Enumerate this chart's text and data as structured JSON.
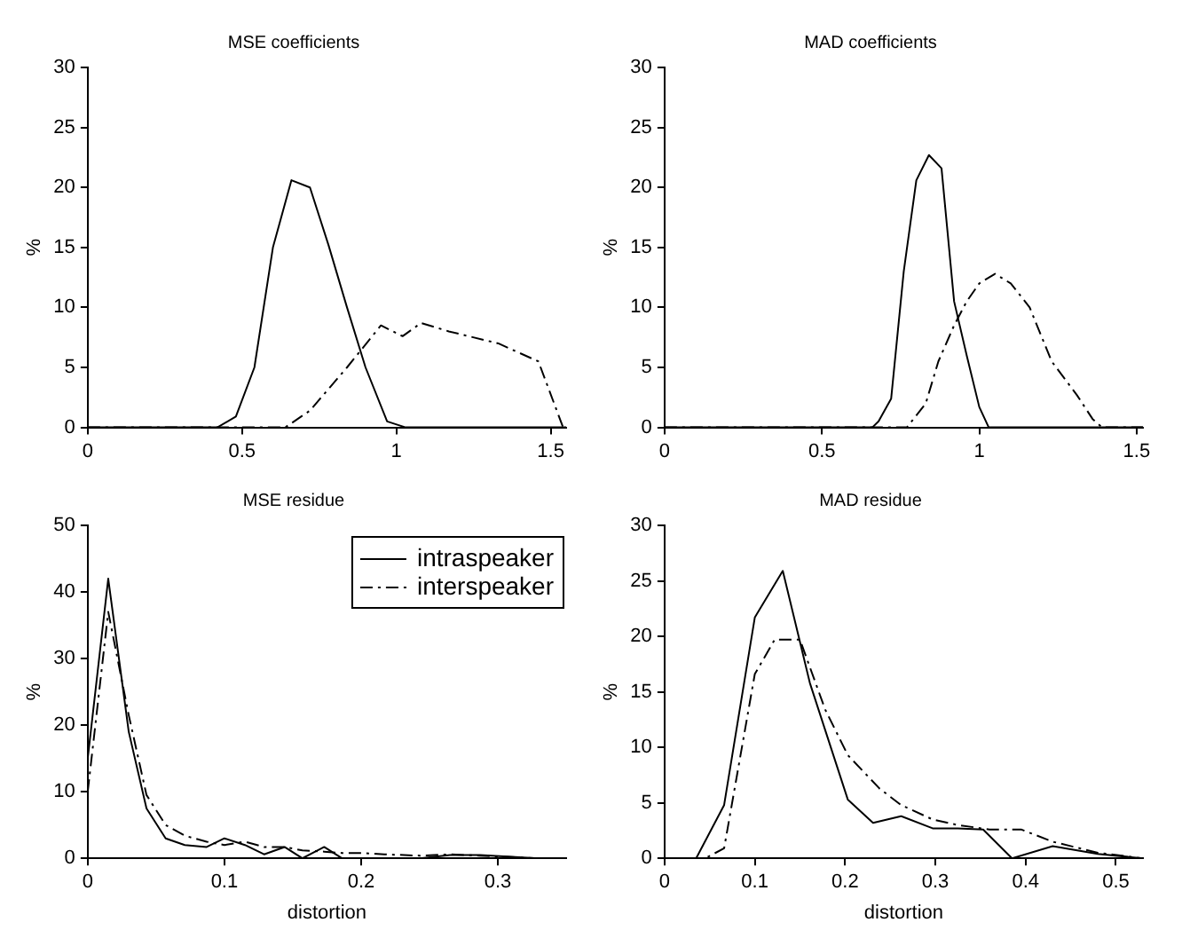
{
  "chart_data": [
    {
      "type": "line",
      "title": "MSE coefficients",
      "ylabel": "%",
      "xlim": [
        0,
        1.55
      ],
      "xticks": [
        0,
        0.5,
        1,
        1.5
      ],
      "ylim": [
        0,
        30
      ],
      "yticks": [
        0,
        5,
        10,
        15,
        20,
        25,
        30
      ],
      "grid": false,
      "legend": false,
      "marker": "none",
      "series": [
        {
          "color": "#000000",
          "line_style": "solid",
          "x": [
            0,
            0.42,
            0.48,
            0.54,
            0.6,
            0.66,
            0.72,
            0.78,
            0.84,
            0.9,
            0.97,
            1.03,
            1.55
          ],
          "values": [
            0,
            0,
            0.9,
            5,
            15,
            20.6,
            20,
            15.2,
            10,
            5,
            0.5,
            0,
            0
          ]
        },
        {
          "color": "#000000",
          "line_style": "dashed",
          "x": [
            0,
            0.64,
            0.72,
            0.84,
            0.95,
            1.02,
            1.08,
            1.17,
            1.33,
            1.46,
            1.54
          ],
          "values": [
            0,
            0,
            1.4,
            5,
            8.5,
            7.6,
            8.7,
            8,
            7,
            5.5,
            0
          ]
        }
      ]
    },
    {
      "type": "line",
      "title": "MAD coefficients",
      "ylabel": "%",
      "xlim": [
        0,
        1.52
      ],
      "xticks": [
        0,
        0.5,
        1,
        1.5
      ],
      "ylim": [
        0,
        30
      ],
      "yticks": [
        0,
        5,
        10,
        15,
        20,
        25,
        30
      ],
      "grid": false,
      "legend": false,
      "marker": "none",
      "series": [
        {
          "color": "#000000",
          "line_style": "solid",
          "x": [
            0,
            0.66,
            0.68,
            0.72,
            0.76,
            0.8,
            0.84,
            0.88,
            0.92,
            0.96,
            1,
            1.03,
            1.52
          ],
          "values": [
            0,
            0,
            0.5,
            2.4,
            13,
            20.6,
            22.7,
            21.6,
            10.5,
            6,
            1.7,
            0,
            0
          ]
        },
        {
          "color": "#000000",
          "line_style": "dashed",
          "x": [
            0,
            0.77,
            0.83,
            0.87,
            0.92,
            0.96,
            1,
            1.05,
            1.1,
            1.16,
            1.23,
            1.31,
            1.36,
            1.39,
            1.52
          ],
          "values": [
            0,
            0,
            2,
            5.5,
            8.5,
            10.5,
            12,
            12.8,
            12,
            10,
            5.5,
            2.7,
            0.7,
            0,
            0
          ]
        }
      ]
    },
    {
      "type": "line",
      "title": "MSE residue",
      "xlabel": "distortion",
      "ylabel": "%",
      "xlim": [
        0,
        0.35
      ],
      "xticks": [
        0,
        0.1,
        0.2,
        0.3
      ],
      "ylim": [
        0,
        50
      ],
      "yticks": [
        0,
        10,
        20,
        30,
        40,
        50
      ],
      "grid": false,
      "legend": "top right",
      "marker": "none",
      "series": [
        {
          "name": "intraspeaker",
          "color": "#000000",
          "line_style": "solid",
          "x": [
            0,
            0.015,
            0.03,
            0.043,
            0.057,
            0.071,
            0.087,
            0.1,
            0.115,
            0.129,
            0.144,
            0.157,
            0.173,
            0.186,
            0.2,
            0.243,
            0.265,
            0.287,
            0.33,
            0.35
          ],
          "values": [
            15,
            42,
            19,
            7.5,
            3,
            2,
            1.7,
            3,
            2,
            0.6,
            1.7,
            0,
            1.7,
            0,
            0,
            0,
            0.5,
            0.5,
            0,
            0
          ]
        },
        {
          "name": "interspeaker",
          "color": "#000000",
          "line_style": "dashed",
          "x": [
            0,
            0.015,
            0.03,
            0.043,
            0.057,
            0.071,
            0.087,
            0.1,
            0.115,
            0.129,
            0.144,
            0.157,
            0.173,
            0.186,
            0.2,
            0.217,
            0.243,
            0.265,
            0.287,
            0.33,
            0.35
          ],
          "values": [
            10,
            37,
            21.5,
            9.5,
            5,
            3.4,
            2.5,
            2,
            2.5,
            1.7,
            1.7,
            1.2,
            1,
            0.8,
            0.8,
            0.6,
            0.4,
            0.6,
            0.4,
            0,
            0
          ]
        }
      ]
    },
    {
      "type": "line",
      "title": "MAD residue",
      "xlabel": "distortion",
      "ylabel": "%",
      "xlim": [
        0,
        0.53
      ],
      "xticks": [
        0,
        0.1,
        0.2,
        0.3,
        0.4,
        0.5
      ],
      "ylim": [
        0,
        30
      ],
      "yticks": [
        0,
        5,
        10,
        15,
        20,
        25,
        30
      ],
      "grid": false,
      "legend": false,
      "marker": "none",
      "series": [
        {
          "color": "#000000",
          "line_style": "solid",
          "x": [
            0,
            0.035,
            0.066,
            0.1,
            0.131,
            0.161,
            0.203,
            0.231,
            0.262,
            0.297,
            0.325,
            0.353,
            0.385,
            0.43,
            0.48,
            0.53
          ],
          "values": [
            0,
            0,
            4.8,
            21.7,
            25.9,
            15.8,
            5.3,
            3.2,
            3.8,
            2.7,
            2.7,
            2.6,
            0,
            1.1,
            0.4,
            0
          ]
        },
        {
          "color": "#000000",
          "line_style": "dashed",
          "x": [
            0,
            0.045,
            0.066,
            0.1,
            0.122,
            0.15,
            0.178,
            0.203,
            0.238,
            0.262,
            0.297,
            0.325,
            0.36,
            0.395,
            0.43,
            0.48,
            0.53
          ],
          "values": [
            0,
            0,
            0.9,
            16.6,
            19.7,
            19.7,
            13.4,
            9.3,
            6.3,
            4.8,
            3.5,
            3,
            2.6,
            2.6,
            1.5,
            0.5,
            0
          ]
        }
      ]
    }
  ]
}
